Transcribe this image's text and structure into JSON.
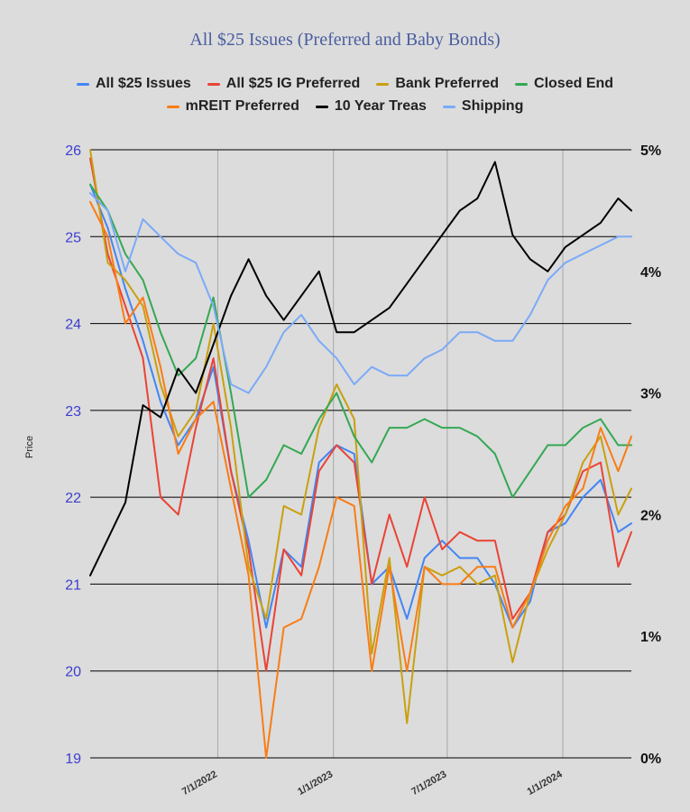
{
  "chart_data": {
    "type": "line",
    "title": "All $25 Issues (Preferred and Baby Bonds)",
    "ylabel": "Price",
    "xlabel": "",
    "ylim": [
      19,
      26
    ],
    "y2lim": [
      0,
      5
    ],
    "y_ticks": [
      "19",
      "20",
      "21",
      "22",
      "23",
      "24",
      "25",
      "26"
    ],
    "y2_ticks": [
      "0%",
      "1%",
      "2%",
      "3%",
      "4%",
      "5%"
    ],
    "x_ticks": [
      "7/1/2022",
      "1/1/2023",
      "7/1/2023",
      "1/1/2024"
    ],
    "x_range": [
      "2021-12-10",
      "2024-04-19"
    ],
    "grid": "horizontal and vertical",
    "legend_position": "top",
    "x": [
      "2021-12-10",
      "2022-01-07",
      "2022-02-04",
      "2022-03-04",
      "2022-04-01",
      "2022-04-29",
      "2022-05-27",
      "2022-06-24",
      "2022-07-22",
      "2022-08-19",
      "2022-09-16",
      "2022-10-14",
      "2022-11-11",
      "2022-12-09",
      "2023-01-06",
      "2023-02-03",
      "2023-03-03",
      "2023-03-31",
      "2023-04-28",
      "2023-05-26",
      "2023-06-23",
      "2023-07-21",
      "2023-08-18",
      "2023-09-15",
      "2023-10-13",
      "2023-11-10",
      "2023-12-08",
      "2024-01-05",
      "2024-02-02",
      "2024-03-01",
      "2024-03-29",
      "2024-04-19"
    ],
    "series": [
      {
        "name": "All $25 Issues",
        "color": "#4285f4",
        "axis": "left",
        "values": [
          25.6,
          25.1,
          24.4,
          23.8,
          23.1,
          22.6,
          22.9,
          23.5,
          22.3,
          21.5,
          20.5,
          21.4,
          21.2,
          22.4,
          22.6,
          22.5,
          21.0,
          21.2,
          20.6,
          21.3,
          21.5,
          21.3,
          21.3,
          21.0,
          20.5,
          20.8,
          21.6,
          21.7,
          22.0,
          22.2,
          21.6,
          21.7
        ]
      },
      {
        "name": "All $25 IG Preferred",
        "color": "#ea4335",
        "axis": "left",
        "values": [
          25.9,
          24.8,
          24.2,
          23.6,
          22.0,
          21.8,
          22.8,
          23.6,
          22.3,
          21.4,
          20.0,
          21.4,
          21.1,
          22.3,
          22.6,
          22.4,
          21.0,
          21.8,
          21.2,
          22.0,
          21.4,
          21.6,
          21.5,
          21.5,
          20.6,
          20.9,
          21.6,
          21.8,
          22.3,
          22.4,
          21.2,
          21.6
        ]
      },
      {
        "name": "Bank Preferred",
        "color": "#c9a00f",
        "axis": "left",
        "values": [
          26.0,
          24.7,
          24.5,
          24.2,
          23.3,
          22.7,
          23.0,
          24.0,
          22.8,
          21.2,
          20.6,
          21.9,
          21.8,
          22.8,
          23.3,
          22.9,
          20.2,
          21.3,
          19.4,
          21.2,
          21.1,
          21.2,
          21.0,
          21.1,
          20.1,
          20.9,
          21.4,
          21.8,
          22.4,
          22.7,
          21.8,
          22.1
        ]
      },
      {
        "name": "Closed End",
        "color": "#34a853",
        "axis": "left",
        "values": [
          25.6,
          25.3,
          24.8,
          24.5,
          23.9,
          23.4,
          23.6,
          24.3,
          23.2,
          22.0,
          22.2,
          22.6,
          22.5,
          22.9,
          23.2,
          22.7,
          22.4,
          22.8,
          22.8,
          22.9,
          22.8,
          22.8,
          22.7,
          22.5,
          22.0,
          22.3,
          22.6,
          22.6,
          22.8,
          22.9,
          22.6,
          22.6
        ]
      },
      {
        "name": "mREIT Preferred",
        "color": "#fa7c14",
        "axis": "left",
        "values": [
          25.4,
          25.0,
          24.0,
          24.3,
          23.5,
          22.5,
          22.9,
          23.1,
          22.1,
          21.1,
          19.0,
          20.5,
          20.6,
          21.2,
          22.0,
          21.9,
          20.0,
          21.2,
          20.0,
          21.2,
          21.0,
          21.0,
          21.2,
          21.2,
          20.5,
          20.9,
          21.5,
          21.9,
          22.1,
          22.8,
          22.3,
          22.7
        ]
      },
      {
        "name": "10 Year Treas",
        "color": "#000000",
        "axis": "right",
        "values": [
          1.5,
          1.8,
          2.1,
          2.9,
          2.8,
          3.2,
          3.0,
          3.4,
          3.8,
          4.1,
          3.8,
          3.6,
          3.8,
          4.0,
          3.5,
          3.5,
          3.6,
          3.7,
          3.9,
          4.1,
          4.3,
          4.5,
          4.6,
          4.9,
          4.3,
          4.1,
          4.0,
          4.2,
          4.3,
          4.4,
          4.6,
          4.5
        ]
      },
      {
        "name": "Shipping",
        "color": "#7baaf7",
        "axis": "left",
        "values": [
          25.5,
          25.3,
          24.6,
          25.2,
          25.0,
          24.8,
          24.7,
          24.2,
          23.3,
          23.2,
          23.5,
          23.9,
          24.1,
          23.8,
          23.6,
          23.3,
          23.5,
          23.4,
          23.4,
          23.6,
          23.7,
          23.9,
          23.9,
          23.8,
          23.8,
          24.1,
          24.5,
          24.7,
          24.8,
          24.9,
          25.0,
          25.0
        ]
      }
    ]
  }
}
